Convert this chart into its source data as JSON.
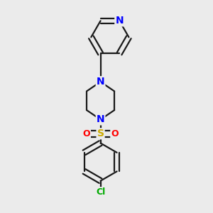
{
  "background_color": "#ebebeb",
  "bond_color": "#1a1a1a",
  "bond_width": 1.6,
  "atom_colors": {
    "N": "#0000ff",
    "S": "#ccaa00",
    "O": "#ff0000",
    "Cl": "#00aa00",
    "C": "#1a1a1a"
  },
  "font_size": 9,
  "fig_size": [
    3.0,
    3.0
  ],
  "dpi": 100
}
